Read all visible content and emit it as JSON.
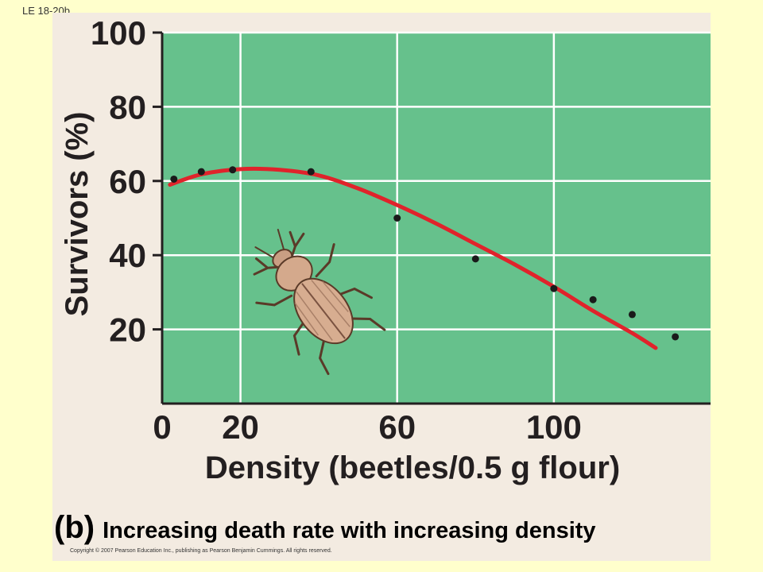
{
  "slide_label": "LE 18-20b",
  "caption": {
    "letter": "(b)",
    "text": "Increasing death rate with increasing density"
  },
  "copyright": "Copyright © 2007 Pearson Education Inc., publishing as Pearson Benjamin Cummings. All rights reserved.",
  "colors": {
    "plot_background": "#66c18c",
    "grid": "#ffffff",
    "curve": "#e0232b",
    "points": "#1a1a1a",
    "panel": "#f3ebe1",
    "slide_background": "#ffffcc"
  },
  "icons": [
    "beetle-illustration"
  ],
  "chart_data": {
    "type": "scatter",
    "title": "",
    "xlabel": "Density (beetles/0.5 g flour)",
    "ylabel": "Survivors (%)",
    "xlim": [
      0,
      140
    ],
    "ylim": [
      0,
      100
    ],
    "x_ticks": [
      0,
      20,
      60,
      100
    ],
    "y_ticks": [
      20,
      40,
      60,
      80,
      100
    ],
    "grid": true,
    "legend": "none",
    "series": [
      {
        "type": "scatter",
        "x": [
          3,
          10,
          18,
          38,
          60,
          80,
          100,
          110,
          120,
          131
        ],
        "y": [
          60.5,
          62.5,
          63,
          62.5,
          50,
          39,
          31,
          28,
          24,
          18
        ]
      },
      {
        "type": "line",
        "x": [
          2,
          10,
          20,
          30,
          40,
          50,
          60,
          70,
          80,
          90,
          100,
          110,
          120,
          126
        ],
        "y": [
          59,
          61.8,
          63.2,
          63,
          61.5,
          58,
          53.5,
          48.5,
          43,
          37.5,
          31.5,
          25,
          19,
          15
        ]
      }
    ]
  }
}
